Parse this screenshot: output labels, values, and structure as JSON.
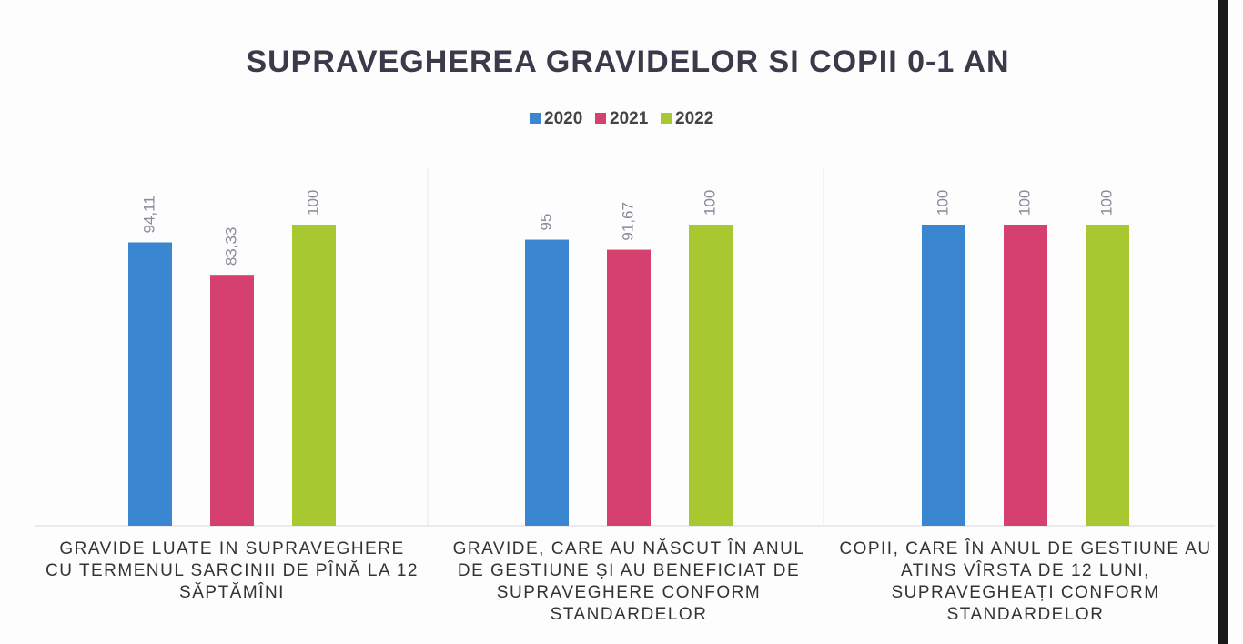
{
  "chart_data": {
    "type": "bar",
    "title": "SUPRAVEGHEREA GRAVIDELOR SI COPII 0-1 AN",
    "categories": [
      "GRAVIDE LUATE  IN SUPRAVEGHERE CU TERMENUL SARCINII DE PÎNĂ LA 12 SĂPTĂMÎNI",
      "GRAVIDE, CARE AU NĂSCUT ÎN ANUL DE GESTIUNE  ȘI AU BENEFICIAT DE SUPRAVEGHERE CONFORM STANDARDELOR",
      "COPII, CARE ÎN ANUL DE GESTIUNE AU ATINS VÎRSTA DE 12 LUNI, SUPRAVEGHEAȚI CONFORM STANDARDELOR"
    ],
    "series": [
      {
        "name": "2020",
        "color": "#3a86d0",
        "values": [
          94.11,
          95,
          100
        ],
        "value_labels": [
          "94,11",
          "95",
          "100"
        ]
      },
      {
        "name": "2021",
        "color": "#d6406e",
        "values": [
          83.33,
          91.67,
          100
        ],
        "value_labels": [
          "83,33",
          "91,67",
          "100"
        ]
      },
      {
        "name": "2022",
        "color": "#a8c832",
        "values": [
          100,
          100,
          100
        ],
        "value_labels": [
          "100",
          "100",
          "100"
        ]
      }
    ],
    "legend": "top"
  }
}
